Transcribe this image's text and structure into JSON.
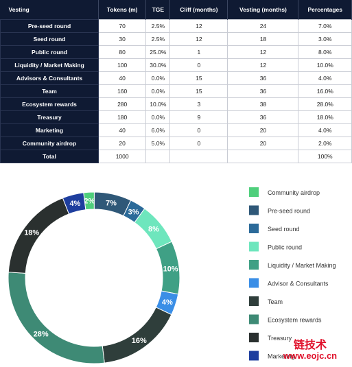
{
  "table": {
    "headers": [
      "Vesting",
      "Tokens (m)",
      "TGE",
      "Cliff (months)",
      "Vesting (months)",
      "Percentages"
    ],
    "rows": [
      [
        "Pre-seed round",
        "70",
        "2.5%",
        "12",
        "24",
        "7.0%"
      ],
      [
        "Seed round",
        "30",
        "2.5%",
        "12",
        "18",
        "3.0%"
      ],
      [
        "Public round",
        "80",
        "25.0%",
        "1",
        "12",
        "8.0%"
      ],
      [
        "Liquidity / Market Making",
        "100",
        "30.0%",
        "0",
        "12",
        "10.0%"
      ],
      [
        "Advisors & Consultants",
        "40",
        "0.0%",
        "15",
        "36",
        "4.0%"
      ],
      [
        "Team",
        "160",
        "0.0%",
        "15",
        "36",
        "16.0%"
      ],
      [
        "Ecosystem rewards",
        "280",
        "10.0%",
        "3",
        "38",
        "28.0%"
      ],
      [
        "Treasury",
        "180",
        "0.0%",
        "9",
        "36",
        "18.0%"
      ],
      [
        "Marketing",
        "40",
        "6.0%",
        "0",
        "20",
        "4.0%"
      ],
      [
        "Community airdrop",
        "20",
        "5.0%",
        "0",
        "20",
        "2.0%"
      ],
      [
        "Total",
        "1000",
        null,
        null,
        null,
        "100%"
      ]
    ]
  },
  "chart_data": {
    "type": "pie",
    "donut": true,
    "categories": [
      "Community airdrop",
      "Pre-seed round",
      "Seed round",
      "Public round",
      "Liquidity / Market Making",
      "Advisor & Consultants",
      "Team",
      "Ecosystem rewards",
      "Treasury",
      "Marketing"
    ],
    "values": [
      2,
      7,
      3,
      8,
      10,
      4,
      16,
      28,
      18,
      4
    ],
    "value_labels": [
      "2%",
      "7%",
      "3%",
      "8%",
      "10%",
      "4%",
      "16%",
      "28%",
      "18%",
      "4%"
    ],
    "colors": [
      "#4fcf7c",
      "#2f5878",
      "#2b6a99",
      "#6ee6bd",
      "#3fa085",
      "#3a8ee6",
      "#2f3e3b",
      "#3e8a75",
      "#2a302f",
      "#1e3e9e"
    ]
  },
  "watermark": {
    "title": "链技术",
    "url": "www.eojc.cn"
  }
}
